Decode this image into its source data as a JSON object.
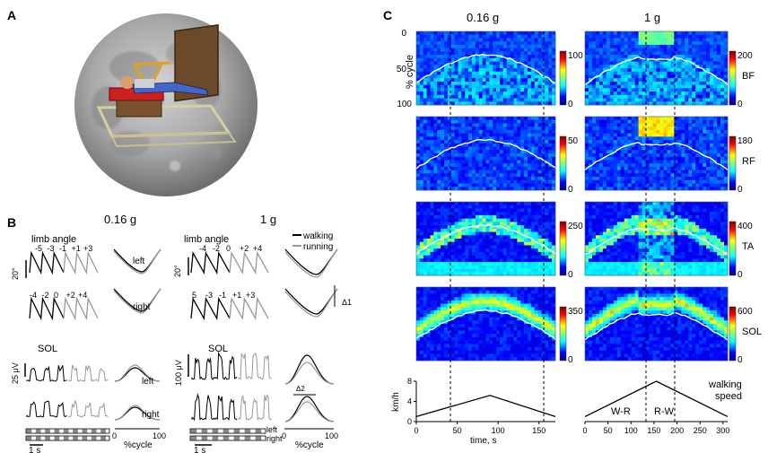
{
  "panels": {
    "a": "A",
    "b": "B",
    "c": "C"
  },
  "panel_b": {
    "col1_title": "0.16 g",
    "col2_title": "1 g",
    "limb_angle": "limb angle",
    "left": "left",
    "right": "right",
    "walking": "walking",
    "running": "running",
    "sol": "SOL",
    "scale_deg": "20°",
    "scale_uv1": "25 μV",
    "scale_uv2": "100 μV",
    "time_scale": "1 s",
    "pct_cycle": "%cycle",
    "tick0": "0",
    "tick100": "100",
    "delta1": "Δ1",
    "delta2": "Δ2",
    "stride_labels_a1": [
      "-5",
      "-3",
      "-1",
      "+1",
      "+3"
    ],
    "stride_labels_a2": [
      "-4",
      "-2",
      "0",
      "+2",
      "+4"
    ],
    "stride_labels_b1": [
      "-4",
      "-2",
      "0",
      "+2",
      "+4"
    ],
    "stride_labels_b2": [
      "5",
      "-3",
      "-1",
      "+1",
      "+3"
    ]
  },
  "panel_c": {
    "col1_title": "0.16 g",
    "col2_title": "1 g",
    "ylabel": "% cycle",
    "ytick_0": "0",
    "ytick_50": "50",
    "ytick_100": "100",
    "muscles": [
      "BF",
      "RF",
      "TA",
      "SOL"
    ],
    "cbar_max_016": [
      "100",
      "50",
      "250",
      "350"
    ],
    "cbar_max_1g": [
      "200",
      "180",
      "400",
      "600"
    ],
    "cbar_min": "0",
    "speed_ylabel": "km/h",
    "speed_ticks": [
      "0",
      "4",
      "8"
    ],
    "xticks_016": [
      "0",
      "50",
      "100",
      "150"
    ],
    "xticks_1g": [
      "0",
      "50",
      "100",
      "150",
      "200",
      "250",
      "300"
    ],
    "xlabel": "time, s",
    "walking_speed": "walking speed",
    "w_r": "W-R",
    "r_w": "R-W"
  },
  "chart_data": [
    {
      "type": "line",
      "title": "0.16 g",
      "xlabel": "time, s",
      "ylabel": "km/h",
      "x": [
        0,
        90,
        170
      ],
      "y": [
        1,
        5.2,
        1
      ],
      "xlim": [
        0,
        170
      ],
      "ylim": [
        0,
        8
      ]
    },
    {
      "type": "line",
      "title": "1 g",
      "xlabel": "",
      "ylabel": "",
      "x": [
        0,
        155,
        310
      ],
      "y": [
        1,
        8,
        1
      ],
      "xlim": [
        0,
        310
      ],
      "ylim": [
        0,
        8
      ]
    }
  ]
}
